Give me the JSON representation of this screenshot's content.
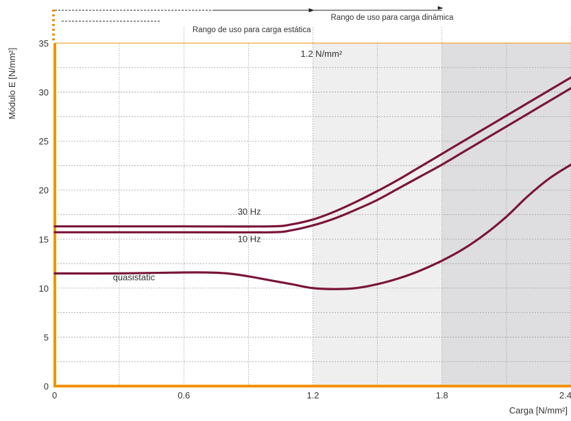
{
  "chart_data": {
    "type": "line",
    "xlabel": "Carga  [N/mm²]",
    "ylabel": "Módulo E [N/mm²]",
    "xlim": [
      0,
      2.4
    ],
    "ylim": [
      0,
      35
    ],
    "x_ticks": [
      0,
      0.6,
      1.2,
      1.8,
      2.4
    ],
    "x_tick_labels": [
      "0",
      "0.6",
      "1.2",
      "1.8",
      "2.4"
    ],
    "y_ticks": [
      0,
      5,
      10,
      15,
      20,
      25,
      30,
      35
    ],
    "y_tick_labels": [
      "0",
      "5",
      "10",
      "15",
      "20",
      "25",
      "30",
      "35"
    ],
    "x_minor_gridlines": [
      0.3,
      0.9,
      1.5,
      2.1
    ],
    "y_minor_gridlines": [
      2.5,
      7.5,
      12.5,
      17.5,
      22.5,
      27.5,
      32.5
    ],
    "grid": true,
    "shaded_regions": [
      {
        "from": 1.2,
        "to": 1.8,
        "color": "#efefef"
      },
      {
        "from": 1.8,
        "to": 2.4,
        "color": "#dedee0"
      }
    ],
    "ranges": [
      {
        "label": "Rango de uso para carga estática",
        "from": 0,
        "to": 1.2
      },
      {
        "label": "Rango de uso para carga dinámica",
        "from": 0,
        "to": 1.8
      }
    ],
    "annotation": "1.2 N/mm²",
    "series": [
      {
        "name": "30 Hz",
        "label_x": 0.85,
        "label_y": 17.5,
        "x": [
          0,
          0.6,
          1.0,
          1.1,
          1.2,
          1.3,
          1.4,
          1.5,
          1.6,
          1.7,
          1.8,
          1.9,
          2.0,
          2.1,
          2.2,
          2.3,
          2.4
        ],
        "y": [
          16.3,
          16.3,
          16.3,
          16.5,
          17.0,
          17.8,
          18.8,
          19.9,
          21.1,
          22.4,
          23.7,
          25.0,
          26.3,
          27.6,
          28.9,
          30.2,
          31.5
        ]
      },
      {
        "name": "10 Hz",
        "label_x": 0.85,
        "label_y": 14.7,
        "x": [
          0,
          0.6,
          1.0,
          1.1,
          1.2,
          1.3,
          1.4,
          1.5,
          1.6,
          1.7,
          1.8,
          1.9,
          2.0,
          2.1,
          2.2,
          2.3,
          2.4
        ],
        "y": [
          15.7,
          15.7,
          15.7,
          15.9,
          16.4,
          17.1,
          18.0,
          19.0,
          20.2,
          21.4,
          22.6,
          23.9,
          25.2,
          26.5,
          27.8,
          29.1,
          30.4
        ]
      },
      {
        "name": "quasistatic",
        "label_x": 0.27,
        "label_y": 10.8,
        "x": [
          0,
          0.3,
          0.6,
          0.7,
          0.8,
          0.9,
          1.0,
          1.1,
          1.2,
          1.3,
          1.4,
          1.5,
          1.6,
          1.7,
          1.8,
          1.9,
          2.0,
          2.1,
          2.2,
          2.3,
          2.4
        ],
        "y": [
          11.5,
          11.5,
          11.6,
          11.6,
          11.5,
          11.2,
          10.8,
          10.4,
          10.0,
          9.9,
          10.0,
          10.4,
          11.0,
          11.8,
          12.8,
          14.0,
          15.5,
          17.3,
          19.4,
          21.2,
          22.6
        ]
      }
    ],
    "colors": {
      "curve": "#7a1538",
      "axis": "#f39200",
      "grid": "#9a9a9a",
      "text": "#333333"
    }
  }
}
